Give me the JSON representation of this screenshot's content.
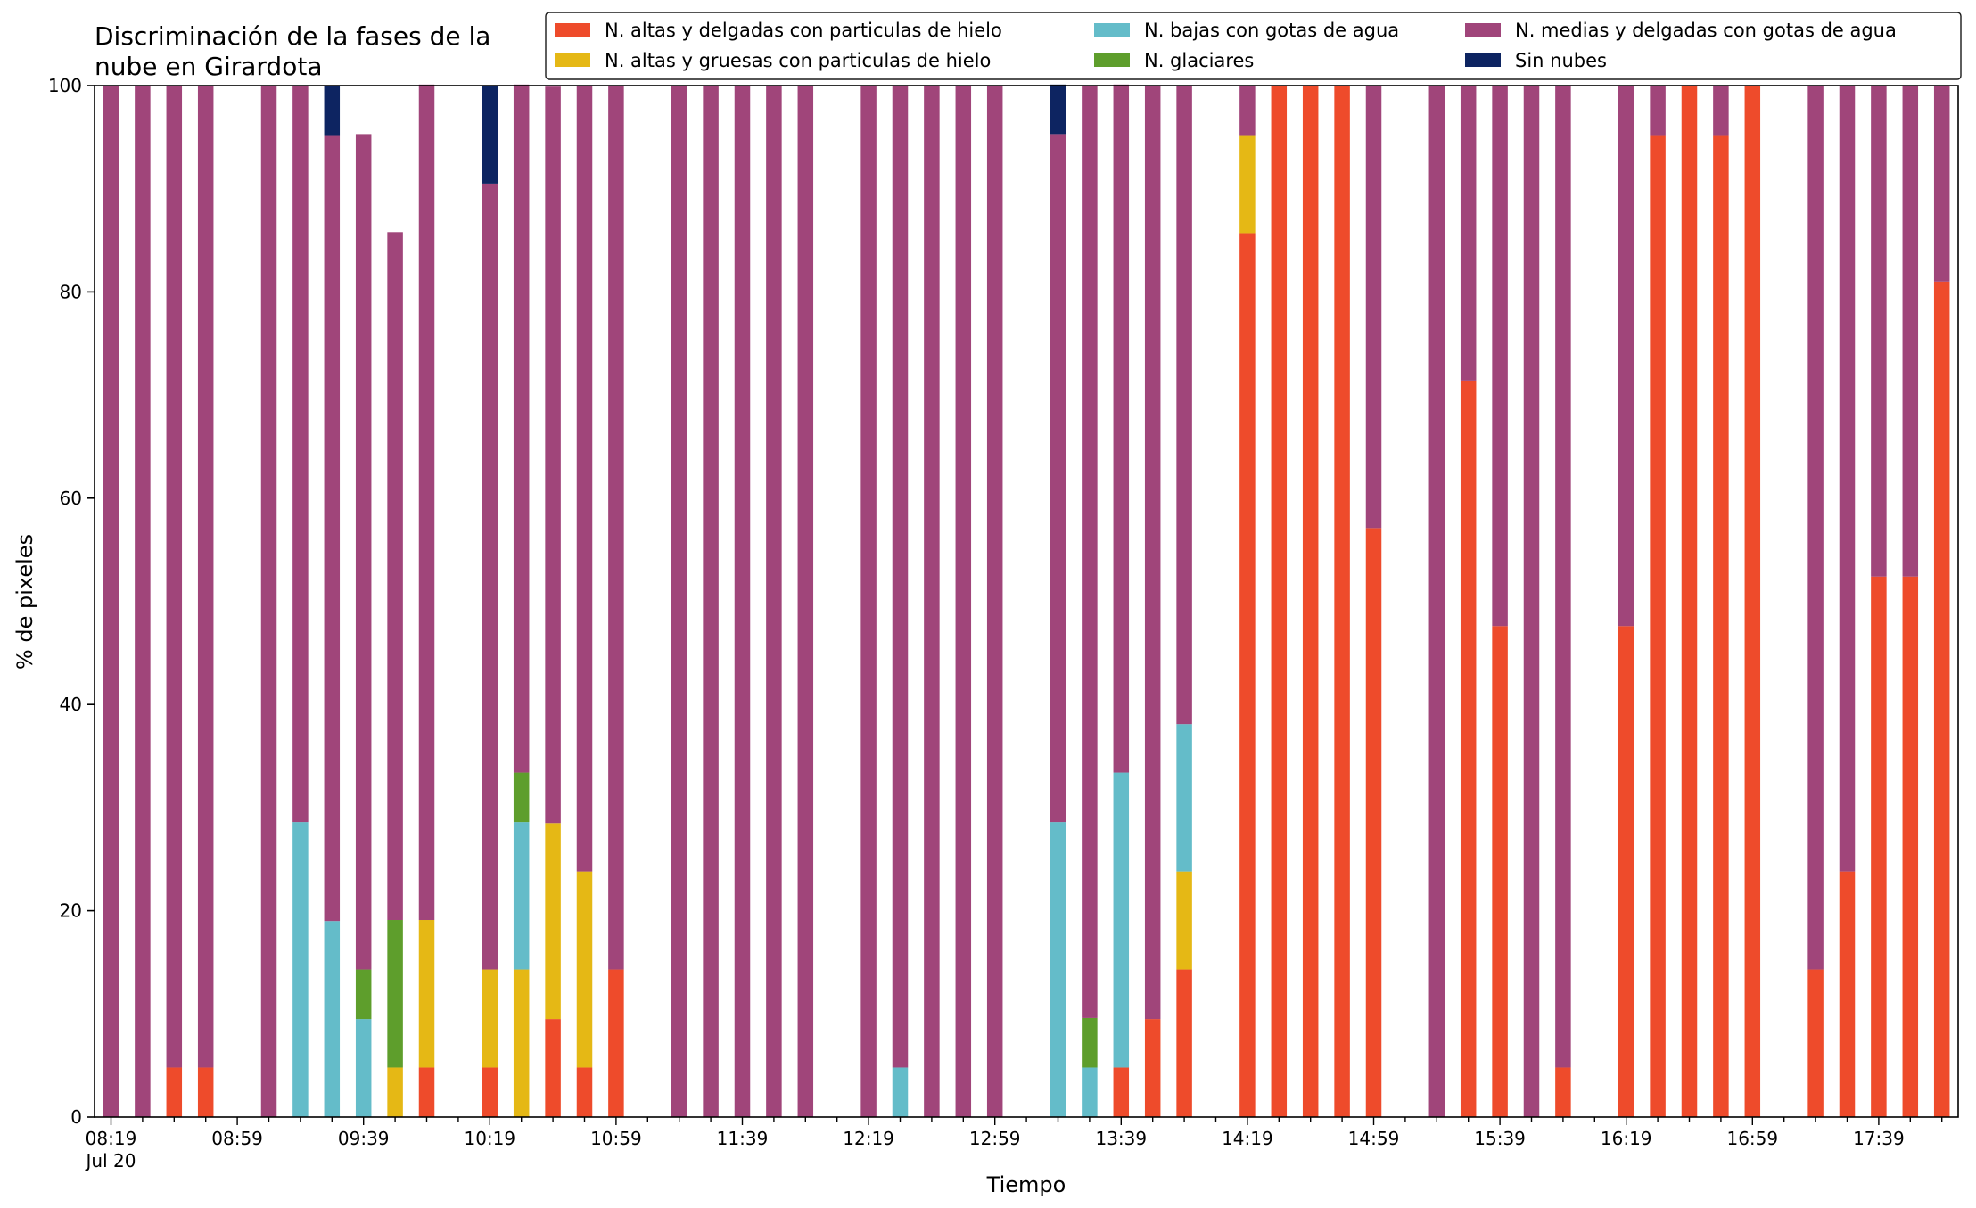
{
  "chart_data": {
    "type": "bar",
    "stacked": true,
    "title": "Discriminación de la fases de la\nnube en Girardota",
    "xlabel": "Tiempo",
    "ylabel": "% de pixeles",
    "ylim": [
      0,
      100
    ],
    "yticks": [
      0,
      20,
      40,
      60,
      80,
      100
    ],
    "x_start": "08:19",
    "x_step_minutes": 10,
    "x_tick_labels": [
      "08:19",
      "08:59",
      "09:39",
      "10:19",
      "10:59",
      "11:39",
      "12:19",
      "12:59",
      "13:39",
      "14:19",
      "14:59",
      "15:39",
      "16:19",
      "16:59",
      "17:39"
    ],
    "x_date_label": "Jul 20",
    "grid": false,
    "legend_position": "top-right",
    "series": [
      {
        "name": "N. altas y delgadas con particulas de hielo",
        "color": "#ee4b2b",
        "values": [
          0,
          0,
          4.8,
          4.8,
          null,
          0,
          0,
          0,
          0,
          0,
          4.8,
          null,
          4.8,
          0,
          9.5,
          4.8,
          14.3,
          null,
          0,
          0,
          0,
          0,
          0,
          null,
          0,
          0,
          0,
          0,
          0,
          null,
          0,
          0,
          4.8,
          9.5,
          14.3,
          null,
          85.7,
          100,
          100,
          100,
          57.1,
          null,
          0,
          71.4,
          47.6,
          0,
          4.8,
          null,
          47.6,
          95.2,
          100,
          95.2,
          100,
          null,
          14.3,
          23.8,
          52.4,
          52.4,
          81
        ]
      },
      {
        "name": "N. altas y gruesas con particulas de hielo",
        "color": "#e5b815",
        "values": [
          0,
          0,
          0,
          0,
          null,
          0,
          0,
          0,
          0,
          4.8,
          14.3,
          null,
          9.5,
          14.3,
          19,
          19,
          0,
          null,
          0,
          0,
          0,
          0,
          0,
          null,
          0,
          0,
          0,
          0,
          0,
          null,
          0,
          0,
          0,
          0,
          9.5,
          null,
          9.5,
          0,
          0,
          0,
          0,
          null,
          0,
          0,
          0,
          0,
          0,
          null,
          0,
          0,
          0,
          0,
          0,
          null,
          0,
          0,
          0,
          0,
          0
        ]
      },
      {
        "name": "N. bajas con gotas de agua",
        "color": "#64bcc9",
        "values": [
          0,
          0,
          0,
          0,
          null,
          0,
          28.6,
          19,
          9.5,
          0,
          0,
          null,
          0,
          14.3,
          0,
          0,
          0,
          null,
          0,
          0,
          0,
          0,
          0,
          null,
          0,
          4.8,
          0,
          0,
          0,
          null,
          28.6,
          4.8,
          28.6,
          0,
          14.3,
          null,
          0,
          0,
          0,
          0,
          0,
          null,
          0,
          0,
          0,
          0,
          0,
          null,
          0,
          0,
          0,
          0,
          0,
          null,
          0,
          0,
          0,
          0,
          0
        ]
      },
      {
        "name": "N. glaciares",
        "color": "#5e9e2c",
        "values": [
          0,
          0,
          0,
          0,
          null,
          0,
          0,
          0,
          4.8,
          14.3,
          0,
          null,
          0,
          4.8,
          0,
          0,
          0,
          null,
          0,
          0,
          0,
          0,
          0,
          null,
          0,
          0,
          0,
          0,
          0,
          null,
          0,
          4.8,
          0,
          0,
          0,
          null,
          0,
          0,
          0,
          0,
          0,
          null,
          0,
          0,
          0,
          0,
          0,
          null,
          0,
          0,
          0,
          0,
          0,
          null,
          0,
          0,
          0,
          0,
          0
        ]
      },
      {
        "name": "N. medias y delgadas con gotas de agua",
        "color": "#a0457a",
        "values": [
          100,
          100,
          95.2,
          95.2,
          null,
          100,
          71.4,
          76.2,
          81,
          66.7,
          81,
          null,
          76.2,
          66.7,
          71.4,
          76.2,
          85.7,
          null,
          100,
          100,
          100,
          100,
          100,
          null,
          100,
          95.2,
          100,
          100,
          100,
          null,
          66.7,
          90.4,
          66.7,
          90.5,
          61.9,
          null,
          4.8,
          0,
          0,
          0,
          42.9,
          null,
          100,
          28.6,
          52.4,
          100,
          95.2,
          null,
          52.4,
          4.8,
          0,
          4.8,
          0,
          null,
          85.7,
          76.2,
          47.6,
          47.6,
          19
        ]
      },
      {
        "name": "Sin nubes",
        "color": "#0d2461",
        "values": [
          0,
          0,
          0,
          0,
          null,
          0,
          0,
          4.8,
          0,
          0,
          0,
          null,
          9.5,
          0,
          0,
          0,
          0,
          null,
          0,
          0,
          0,
          0,
          0,
          null,
          0,
          0,
          0,
          0,
          0,
          null,
          4.8,
          0,
          0,
          0,
          0,
          null,
          0,
          0,
          0,
          0,
          0,
          null,
          0,
          0,
          0,
          0,
          0,
          null,
          0,
          0,
          0,
          0,
          0,
          null,
          0,
          0,
          0,
          0,
          0
        ]
      }
    ]
  }
}
